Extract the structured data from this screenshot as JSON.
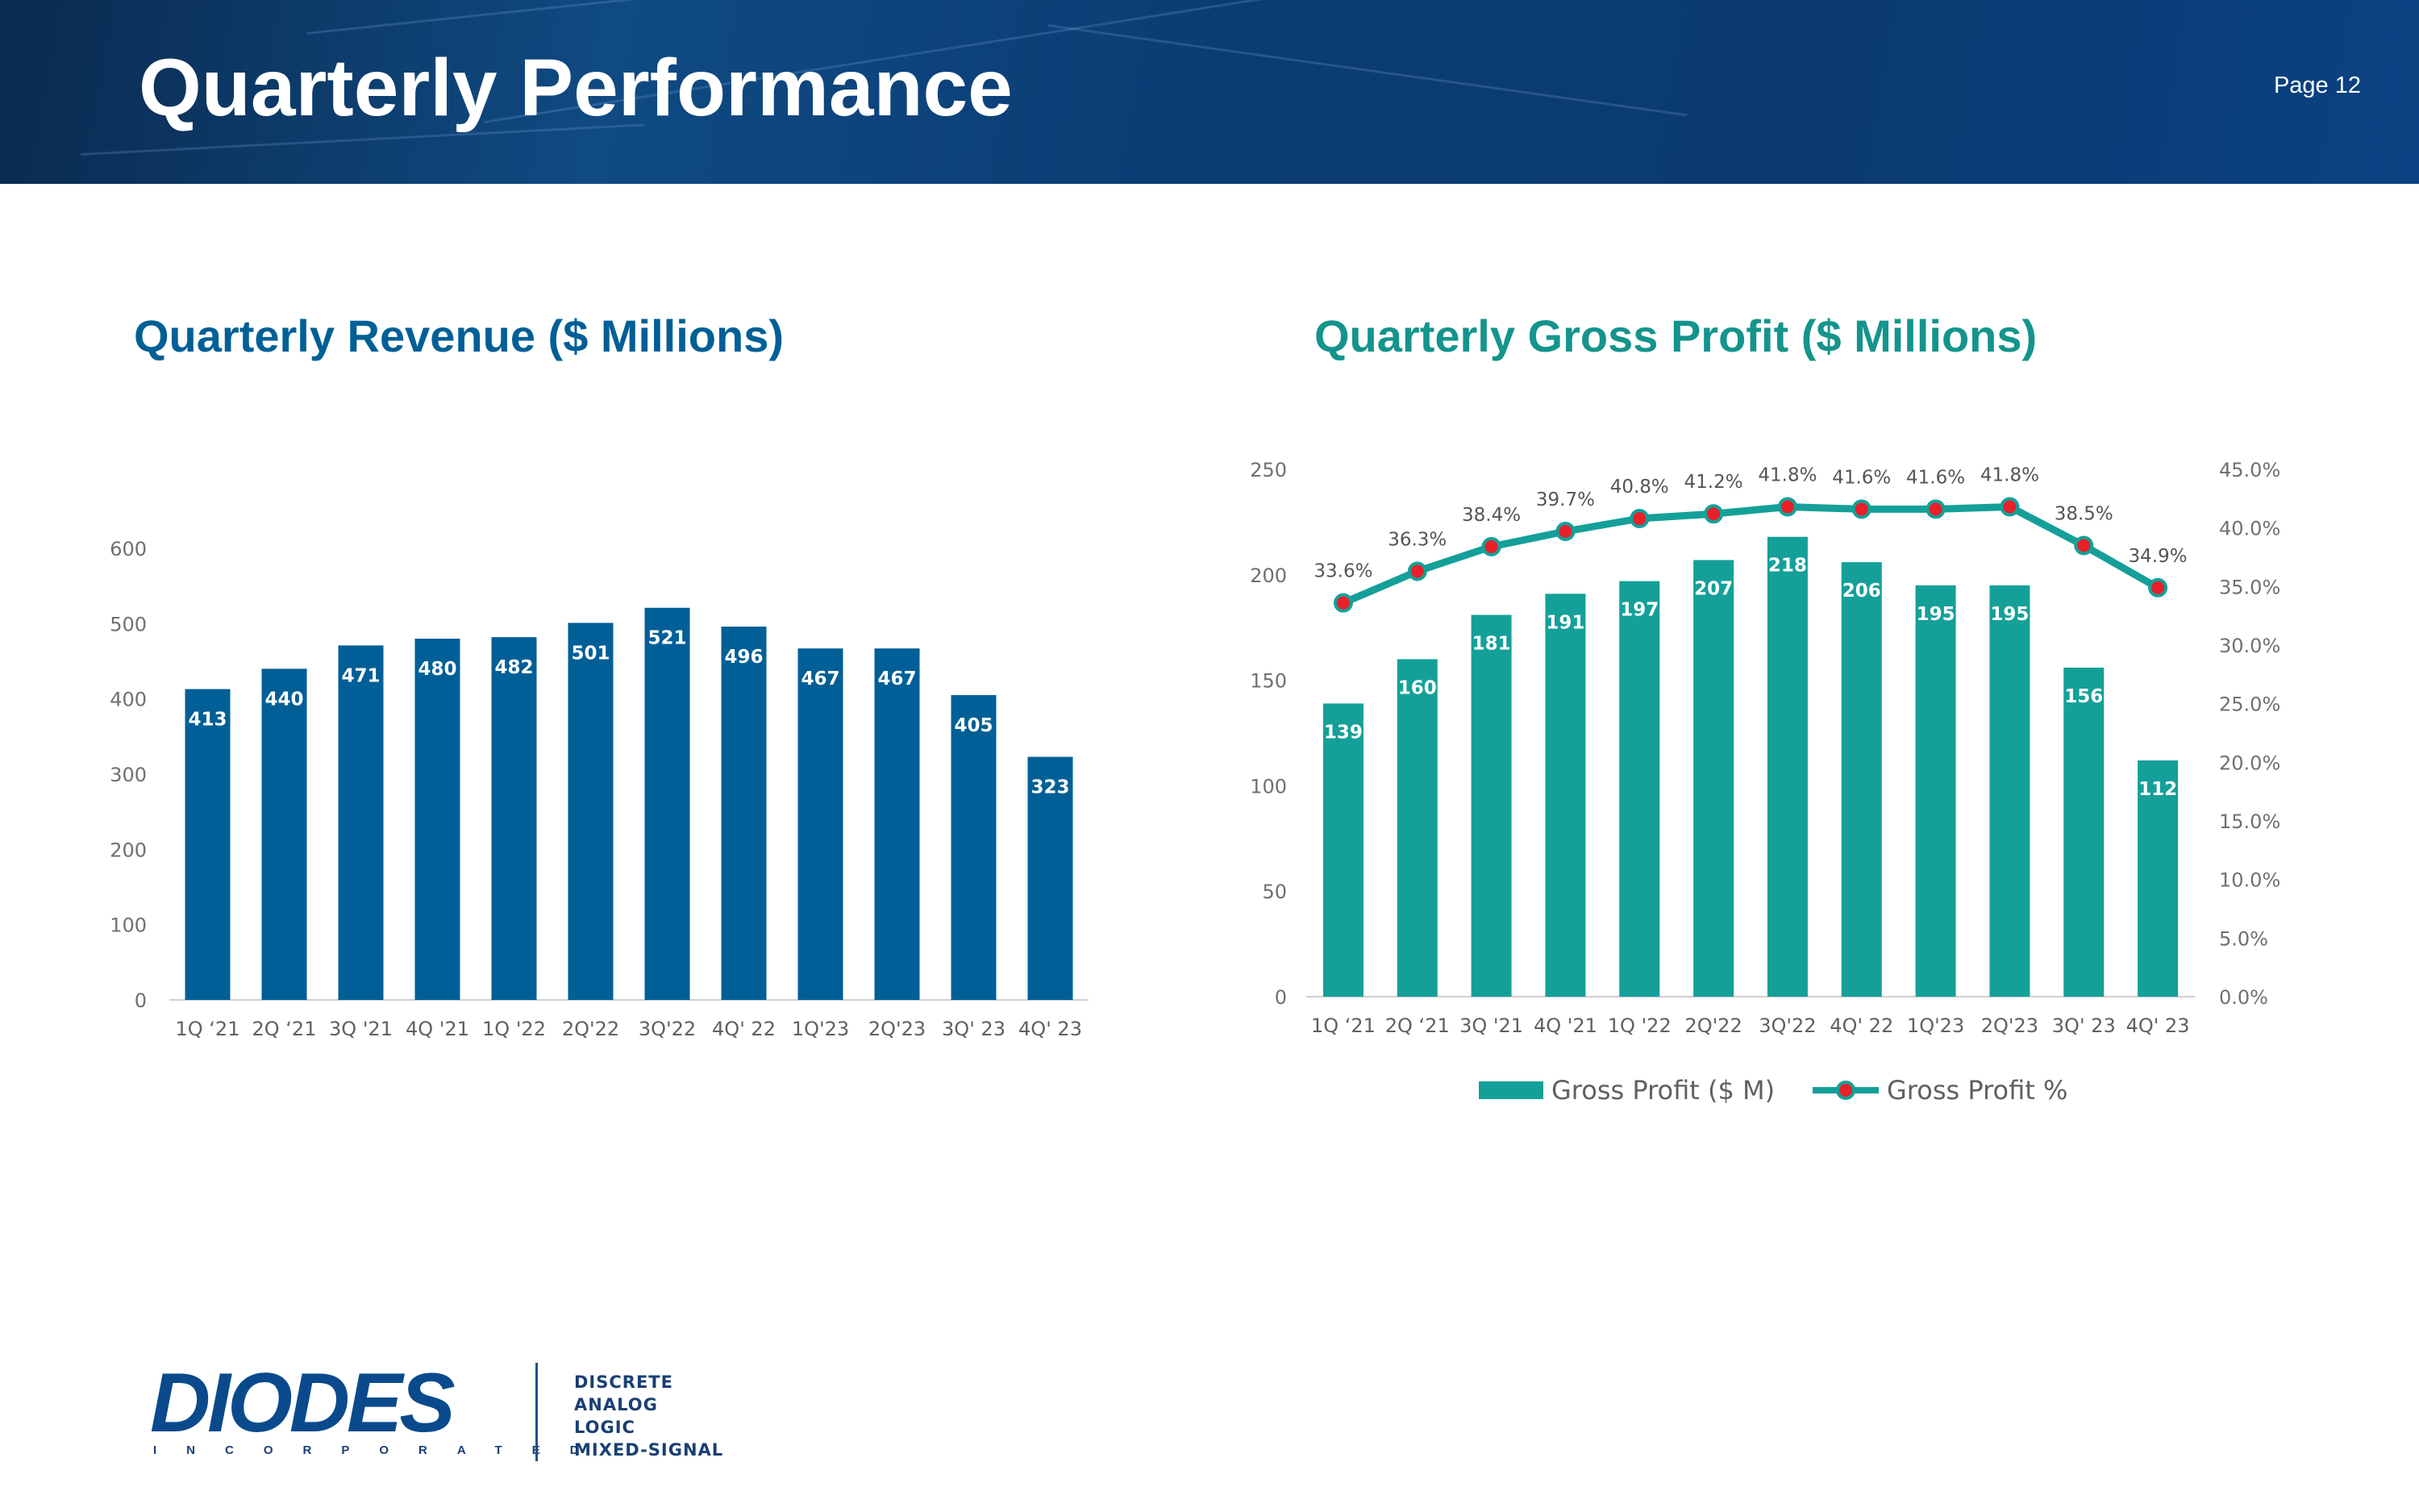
{
  "page": {
    "title": "Quarterly Performance",
    "page_number": "Page 12"
  },
  "brand": {
    "header_color": "#0b3d74",
    "revenue_color": "#005f96",
    "gross_profit_color": "#14a099",
    "marker_color": "#e8202a"
  },
  "logo": {
    "word": "DIODES",
    "sub": "INCORPORATED",
    "taglines": [
      "DISCRETE",
      "ANALOG",
      "LOGIC",
      "MIXED-SIGNAL"
    ]
  },
  "chart_data": [
    {
      "type": "bar",
      "title": "Quarterly Revenue ($ Millions)",
      "categories": [
        "1Q ‘21",
        "2Q ‘21",
        "3Q '21",
        "4Q '21",
        "1Q '22",
        "2Q'22",
        "3Q'22",
        "4Q' 22",
        "1Q'23",
        "2Q'23",
        "3Q' 23",
        "4Q' 23"
      ],
      "values": [
        413,
        440,
        471,
        480,
        482,
        501,
        521,
        496,
        467,
        467,
        405,
        323
      ],
      "data_labels": [
        "413",
        "440",
        "471",
        "480",
        "482",
        "501",
        "521",
        "496",
        "467",
        "467",
        "405",
        "323"
      ],
      "ylim": [
        0,
        600
      ],
      "yticks": [
        "0",
        "100",
        "200",
        "300",
        "400",
        "500",
        "600"
      ],
      "grid": false,
      "xlabel": "",
      "ylabel": ""
    },
    {
      "type": "bar+line",
      "title": "Quarterly Gross Profit ($ Millions)",
      "categories": [
        "1Q ‘21",
        "2Q ‘21",
        "3Q '21",
        "4Q '21",
        "1Q '22",
        "2Q'22",
        "3Q'22",
        "4Q' 22",
        "1Q'23",
        "2Q'23",
        "3Q' 23",
        "4Q' 23"
      ],
      "series": [
        {
          "name": "Gross Profit ($ M)",
          "type": "bar",
          "axis": "left",
          "values": [
            139,
            160,
            181,
            191,
            197,
            207,
            218,
            206,
            195,
            195,
            156,
            112
          ],
          "data_labels": [
            "139",
            "160",
            "181",
            "191",
            "197",
            "207",
            "218",
            "206",
            "195",
            "195",
            "156",
            "112"
          ]
        },
        {
          "name": "Gross Profit %",
          "type": "line",
          "axis": "right",
          "values": [
            33.6,
            36.3,
            38.4,
            39.7,
            40.8,
            41.2,
            41.8,
            41.6,
            41.6,
            41.8,
            38.5,
            34.9
          ],
          "data_labels": [
            "33.6%",
            "36.3%",
            "38.4%",
            "39.7%",
            "40.8%",
            "41.2%",
            "41.8%",
            "41.6%",
            "41.6%",
            "41.8%",
            "38.5%",
            "34.9%"
          ]
        }
      ],
      "ylim": [
        0,
        250
      ],
      "yticks": [
        "0",
        "50",
        "100",
        "150",
        "200",
        "250"
      ],
      "y2lim": [
        0,
        45
      ],
      "y2ticks": [
        "0.0%",
        "5.0%",
        "10.0%",
        "15.0%",
        "20.0%",
        "25.0%",
        "30.0%",
        "35.0%",
        "40.0%",
        "45.0%"
      ],
      "legend": "bottom",
      "grid": false
    }
  ]
}
